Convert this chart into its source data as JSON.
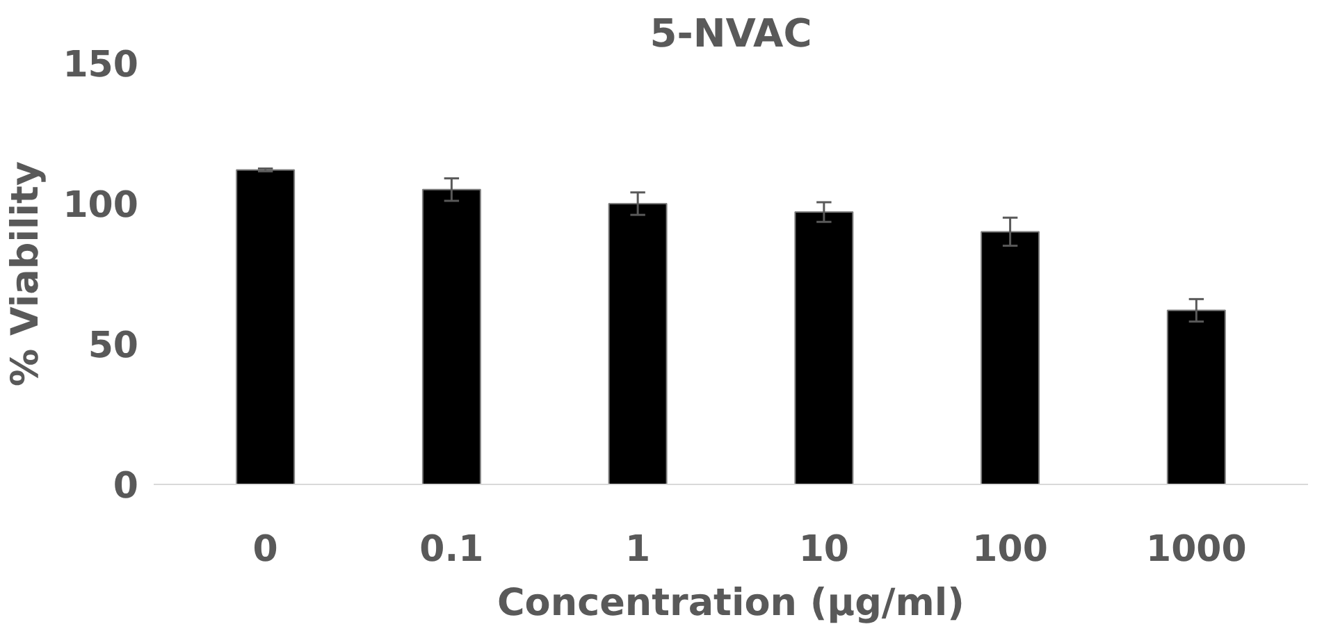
{
  "chart_data": {
    "type": "bar",
    "title": "5-NVAC",
    "xlabel": "Concentration (µg/ml)",
    "ylabel": "% Viability",
    "categories": [
      "0",
      "0.1",
      "1",
      "10",
      "100",
      "1000"
    ],
    "values": [
      112,
      105,
      100,
      97,
      90,
      62
    ],
    "errors": [
      0.5,
      4,
      4,
      3.5,
      5,
      4
    ],
    "color": "#000000",
    "ylim": [
      0,
      150
    ],
    "yticks": [
      0,
      50,
      100,
      150
    ],
    "grid": false
  }
}
